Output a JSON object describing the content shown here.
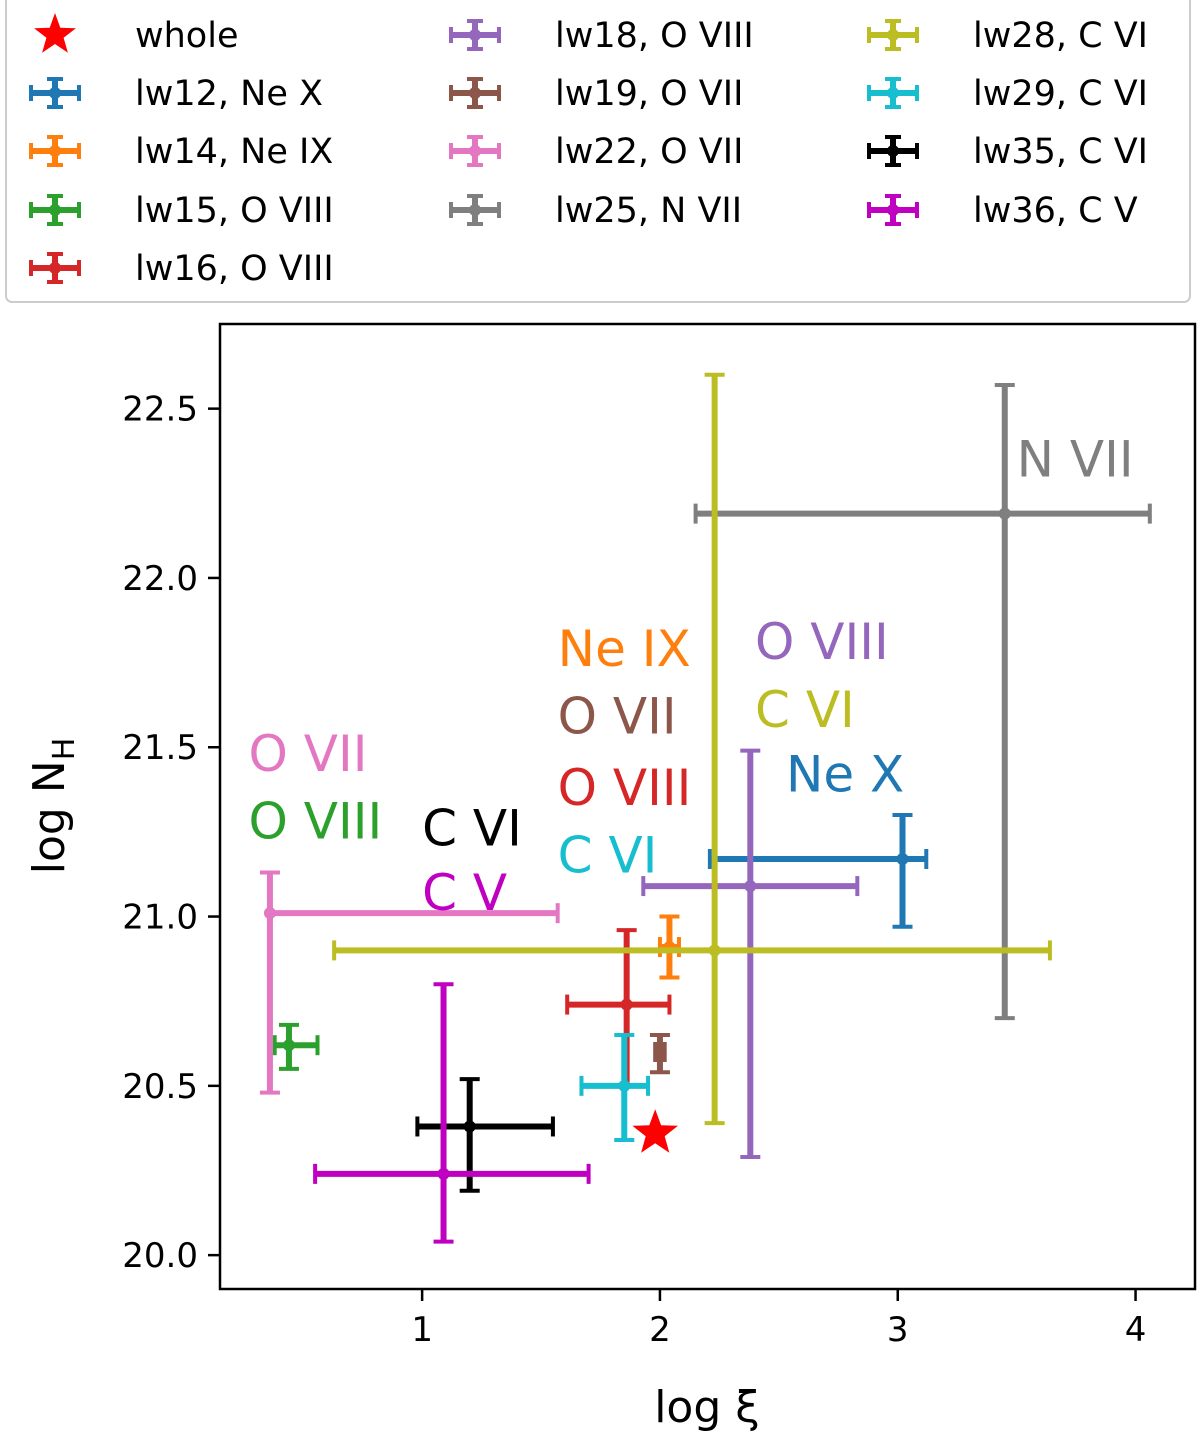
{
  "chart_data": {
    "type": "scatter",
    "xlabel": "log ξ",
    "ylabel_main": "log N",
    "ylabel_sub": "H",
    "xlim": [
      0.15,
      4.25
    ],
    "ylim": [
      19.9,
      22.75
    ],
    "xticks": [
      {
        "value": 1,
        "label": "1"
      },
      {
        "value": 2,
        "label": "2"
      },
      {
        "value": 3,
        "label": "3"
      },
      {
        "value": 4,
        "label": "4"
      }
    ],
    "yticks": [
      {
        "value": 20.0,
        "label": "20.0"
      },
      {
        "value": 20.5,
        "label": "20.5"
      },
      {
        "value": 21.0,
        "label": "21.0"
      },
      {
        "value": 21.5,
        "label": "21.5"
      },
      {
        "value": 22.0,
        "label": "22.0"
      },
      {
        "value": 22.5,
        "label": "22.5"
      }
    ],
    "whole": {
      "label": "whole",
      "x": 1.98,
      "y": 20.36,
      "color": "#ff0000"
    },
    "series": [
      {
        "id": "lw12",
        "legend": "lw12, Ne X",
        "color": "#1f77b4",
        "x": 3.02,
        "y": 21.17,
        "xlo": 2.21,
        "xhi": 3.12,
        "ylo": 20.97,
        "yhi": 21.3
      },
      {
        "id": "lw14",
        "legend": "lw14, Ne IX",
        "color": "#ff7f0e",
        "x": 2.04,
        "y": 20.91,
        "xlo": 2.0,
        "xhi": 2.08,
        "ylo": 20.82,
        "yhi": 21.0
      },
      {
        "id": "lw15",
        "legend": "lw15, O VIII",
        "color": "#2ca02c",
        "x": 0.44,
        "y": 20.62,
        "xlo": 0.38,
        "xhi": 0.56,
        "ylo": 20.55,
        "yhi": 20.68
      },
      {
        "id": "lw16",
        "legend": "lw16, O VIII",
        "color": "#d62728",
        "x": 1.86,
        "y": 20.74,
        "xlo": 1.61,
        "xhi": 2.04,
        "ylo": 20.5,
        "yhi": 20.96
      },
      {
        "id": "lw18",
        "legend": "lw18, O VIII",
        "color": "#9467bd",
        "x": 2.38,
        "y": 21.09,
        "xlo": 1.93,
        "xhi": 2.83,
        "ylo": 20.29,
        "yhi": 21.49
      },
      {
        "id": "lw19",
        "legend": "lw19, O VII",
        "color": "#8c564b",
        "x": 2.0,
        "y": 20.6,
        "xlo": 1.98,
        "xhi": 2.02,
        "ylo": 20.54,
        "yhi": 20.65
      },
      {
        "id": "lw22",
        "legend": "lw22, O VII",
        "color": "#e377c2",
        "x": 0.36,
        "y": 21.01,
        "xlo": 0.36,
        "xhi": 1.57,
        "ylo": 20.48,
        "yhi": 21.13
      },
      {
        "id": "lw25",
        "legend": "lw25, N VII",
        "color": "#7f7f7f",
        "x": 3.45,
        "y": 22.19,
        "xlo": 2.15,
        "xhi": 4.06,
        "ylo": 20.7,
        "yhi": 22.57
      },
      {
        "id": "lw28",
        "legend": "lw28, C VI",
        "color": "#bcbd22",
        "x": 2.23,
        "y": 20.9,
        "xlo": 0.63,
        "xhi": 3.64,
        "ylo": 20.39,
        "yhi": 22.6
      },
      {
        "id": "lw29",
        "legend": "lw29, C VI",
        "color": "#17becf",
        "x": 1.85,
        "y": 20.5,
        "xlo": 1.67,
        "xhi": 1.95,
        "ylo": 20.34,
        "yhi": 20.65
      },
      {
        "id": "lw35",
        "legend": "lw35, C VI",
        "color": "#000000",
        "x": 1.2,
        "y": 20.38,
        "xlo": 0.98,
        "xhi": 1.55,
        "ylo": 20.19,
        "yhi": 20.52
      },
      {
        "id": "lw36",
        "legend": "lw36, C V",
        "color": "#c000c0",
        "x": 1.09,
        "y": 20.24,
        "xlo": 0.55,
        "xhi": 1.7,
        "ylo": 20.04,
        "yhi": 20.8
      }
    ],
    "annotations": [
      {
        "text": "N VII",
        "color": "#7f7f7f",
        "x": 3.5,
        "y": 22.3
      },
      {
        "text": "O VIII",
        "color": "#9467bd",
        "x": 2.4,
        "y": 21.76
      },
      {
        "text": "C VI",
        "color": "#bcbd22",
        "x": 2.4,
        "y": 21.56
      },
      {
        "text": "Ne IX",
        "color": "#ff7f0e",
        "x": 1.57,
        "y": 21.74
      },
      {
        "text": "O VII",
        "color": "#8c564b",
        "x": 1.57,
        "y": 21.54
      },
      {
        "text": "O VIII",
        "color": "#d62728",
        "x": 1.57,
        "y": 21.33
      },
      {
        "text": "C VI",
        "color": "#17becf",
        "x": 1.57,
        "y": 21.13
      },
      {
        "text": "Ne X",
        "color": "#1f77b4",
        "x": 2.53,
        "y": 21.37
      },
      {
        "text": "O VII",
        "color": "#e377c2",
        "x": 0.27,
        "y": 21.43
      },
      {
        "text": "O VIII",
        "color": "#2ca02c",
        "x": 0.27,
        "y": 21.23
      },
      {
        "text": "C VI",
        "color": "#000000",
        "x": 1.0,
        "y": 21.21
      },
      {
        "text": "C V",
        "color": "#c000c0",
        "x": 1.0,
        "y": 21.02
      }
    ]
  }
}
